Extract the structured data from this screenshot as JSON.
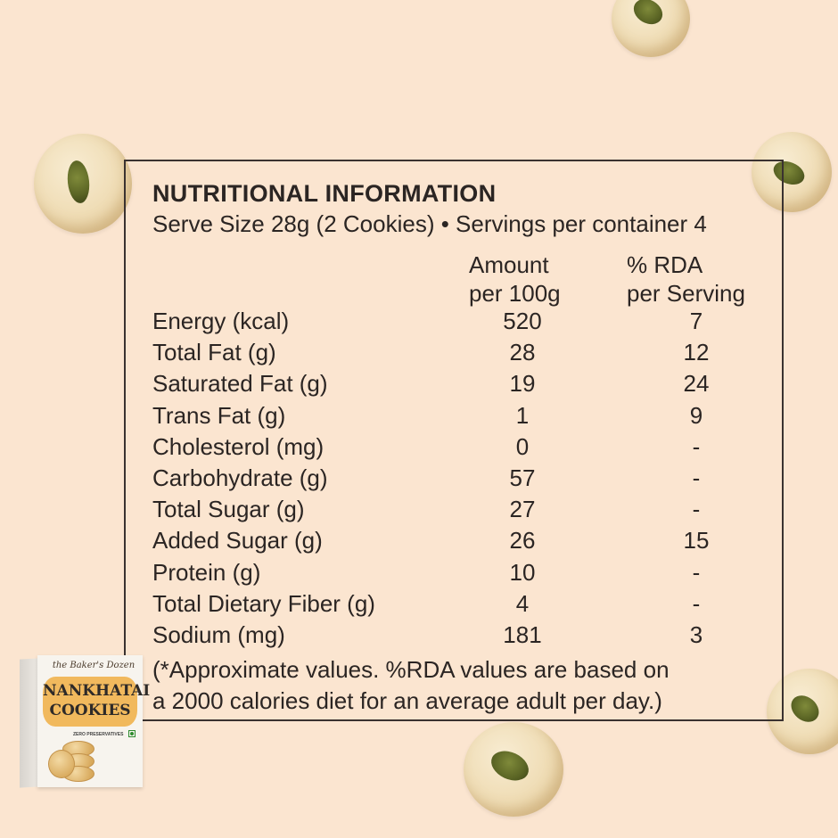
{
  "panel": {
    "title": "NUTRITIONAL INFORMATION",
    "serve_line": "Serve Size 28g (2 Cookies) • Servings per container 4",
    "col_amount": [
      "Amount",
      "per 100g"
    ],
    "col_rda": [
      "% RDA",
      "per Serving"
    ],
    "rows": [
      {
        "name": "Energy (kcal)",
        "amount": "520",
        "rda": "7"
      },
      {
        "name": "Total Fat (g)",
        "amount": "28",
        "rda": "12"
      },
      {
        "name": "Saturated Fat (g)",
        "amount": "19",
        "rda": "24"
      },
      {
        "name": "Trans Fat (g)",
        "amount": "1",
        "rda": "9"
      },
      {
        "name": "Cholesterol (mg)",
        "amount": "0",
        "rda": "-"
      },
      {
        "name": "Carbohydrate (g)",
        "amount": "57",
        "rda": "-"
      },
      {
        "name": "Total Sugar (g)",
        "amount": "27",
        "rda": "-"
      },
      {
        "name": "Added Sugar (g)",
        "amount": "26",
        "rda": "15"
      },
      {
        "name": "Protein (g)",
        "amount": "10",
        "rda": "-"
      },
      {
        "name": "Total Dietary Fiber (g)",
        "amount": "4",
        "rda": "-"
      },
      {
        "name": "Sodium (mg)",
        "amount": "181",
        "rda": "3"
      }
    ],
    "footnote": [
      "(*Approximate values. %RDA values are based on",
      "a 2000 calories diet for an average adult per day.)"
    ]
  },
  "product_box": {
    "brand": "the Baker's Dozen",
    "name_line1": "NANKHATAI",
    "name_line2": "COOKIES",
    "tagline": "ZERO PRESERVATIVES"
  },
  "colors": {
    "background": "#fbe5d0",
    "text": "#2b2523",
    "panel_border": "#3a3230",
    "box_label": "#f1b95d"
  }
}
